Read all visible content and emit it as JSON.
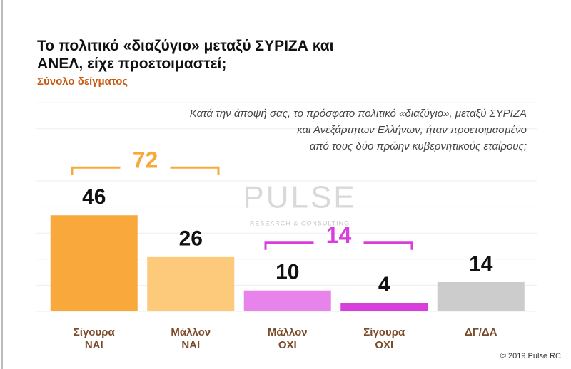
{
  "chart_data": {
    "type": "bar",
    "title": "Το πολιτικό «διαζύγιο» μεταξύ ΣΥΡΙΖΑ και ΑΝΕΛ, είχε προετοιμαστεί;",
    "subtitle": "Σύνολο δείγματος",
    "question_lines": [
      "Κατά την άποψή σας, το πρόσφατο πολιτικό «διαζύγιο», μεταξύ ΣΥΡΙΖΑ",
      "και Ανεξάρτητων Ελλήνων, ήταν προετοιμασμένο",
      "από τους δύο πρώην κυβερνητικούς εταίρους;"
    ],
    "categories": [
      "Σίγουρα ΝΑΙ",
      "Μάλλον ΝΑΙ",
      "Μάλλον ΟΧΙ",
      "Σίγουρα ΟΧΙ",
      "ΔΓ/ΔΑ"
    ],
    "values": [
      46,
      26,
      10,
      4,
      14
    ],
    "colors": [
      "#f9a83c",
      "#fdc97a",
      "#e883ec",
      "#d63fdc",
      "#cccccc"
    ],
    "ylim": [
      0,
      50
    ],
    "group_totals": [
      {
        "value": 72,
        "categories": [
          "Σίγουρα ΝΑΙ",
          "Μάλλον ΝΑΙ"
        ],
        "color": "#f9a83c"
      },
      {
        "value": 14,
        "categories": [
          "Μάλλον ΟΧΙ",
          "Σίγουρα ΟΧΙ"
        ],
        "color": "#d63fdc"
      }
    ],
    "watermark": {
      "name": "PULSE",
      "tagline": "RESEARCH & CONSULTING"
    },
    "footer": "© 2019 Pulse RC"
  }
}
